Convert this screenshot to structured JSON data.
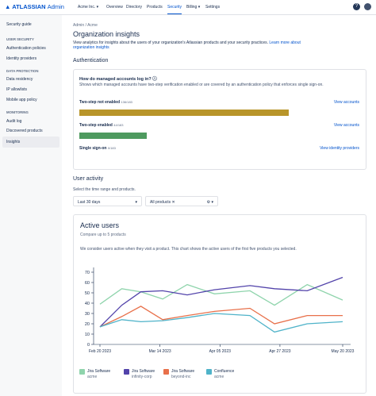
{
  "nav": {
    "logo": "ATLASSIAN",
    "product": "Admin",
    "org": "Acme Inc.",
    "links": [
      "Overview",
      "Directory",
      "Products",
      "Security",
      "Billing",
      "Settings"
    ]
  },
  "sidebar": {
    "top": "Security guide",
    "sections": [
      {
        "heading": "USER SECURITY",
        "items": [
          "Authentication policies",
          "Identity providers"
        ]
      },
      {
        "heading": "DATA PROTECTION",
        "items": [
          "Data residency",
          "IP allowlists",
          "Mobile app policy"
        ]
      },
      {
        "heading": "MONITORING",
        "items": [
          "Audit log",
          "Discovered products",
          "Insights"
        ]
      }
    ]
  },
  "breadcrumb": [
    "Admin",
    "Acme"
  ],
  "title": "Organization insights",
  "description": "View analytics for insights about the users of your organization's Atlassian products and your security practices.",
  "learn_more": "Learn more about organization insights",
  "authentication": {
    "heading": "Authentication",
    "card": {
      "title": "How do managed accounts log in?",
      "description": "Shows which managed accounts have two-step verification enabled or are covered by an authentication policy that enforces single sign-on.",
      "rows": [
        {
          "label": "Two-step not enabled",
          "count": 136,
          "total": 183,
          "link": "View accounts",
          "color": "#b8952a"
        },
        {
          "label": "Two-step enabled",
          "count": 44,
          "total": 183,
          "link": "View accounts",
          "color": "#4e9a5f"
        },
        {
          "label": "Single sign-on",
          "count": 0,
          "total": 183,
          "link": "View identity providers",
          "color": "#4c9aff"
        }
      ]
    }
  },
  "user_activity": {
    "heading": "User activity",
    "hint": "Select the time range and products.",
    "range": "Last 30 days",
    "products": "All products"
  },
  "active_users": {
    "title": "Active users",
    "subtitle": "Compare up to 5 products",
    "description": "We consider users active when they visit a product. This chart shows the active users of the first five products you selected.",
    "chart_data": {
      "type": "line",
      "x": [
        "2023-02-20",
        "2023-02-28",
        "2023-03-07",
        "2023-03-15",
        "2023-03-24",
        "2023-04-03",
        "2023-04-16",
        "2023-04-25",
        "2023-05-07",
        "2023-05-20"
      ],
      "xlim": [
        "2023-02-20",
        "2023-05-20"
      ],
      "xticks": [
        {
          "value": "2023-02-20",
          "label": "Feb 20 2023"
        },
        {
          "value": "2023-03-14",
          "label": "Mar 14 2023"
        },
        {
          "value": "2023-04-05",
          "label": "Apr 05 2023"
        },
        {
          "value": "2023-04-27",
          "label": "Apr 27 2023"
        },
        {
          "value": "2023-05-20",
          "label": "May 20 2023"
        }
      ],
      "ylim": [
        0,
        70
      ],
      "yticks": [
        0,
        10,
        20,
        30,
        40,
        50,
        60,
        70
      ],
      "series": [
        {
          "name": "Jira Software",
          "site": "acme",
          "color": "#8fd4ac",
          "values": [
            39,
            54,
            51,
            44,
            58,
            49,
            52,
            38,
            58,
            43
          ]
        },
        {
          "name": "Jira Software",
          "site": "infinity-corp",
          "color": "#5243aa",
          "values": [
            17,
            38,
            51,
            52,
            48,
            53,
            57,
            54,
            52,
            65
          ]
        },
        {
          "name": "Jira Software",
          "site": "beyond-inc",
          "color": "#e8704a",
          "values": [
            17,
            27,
            37,
            24,
            28,
            32,
            35,
            20,
            28,
            28
          ]
        },
        {
          "name": "Confluence",
          "site": "acme",
          "color": "#4fb3c9",
          "values": [
            17,
            24,
            22,
            23,
            26,
            30,
            28,
            12,
            20,
            22
          ]
        }
      ]
    }
  }
}
